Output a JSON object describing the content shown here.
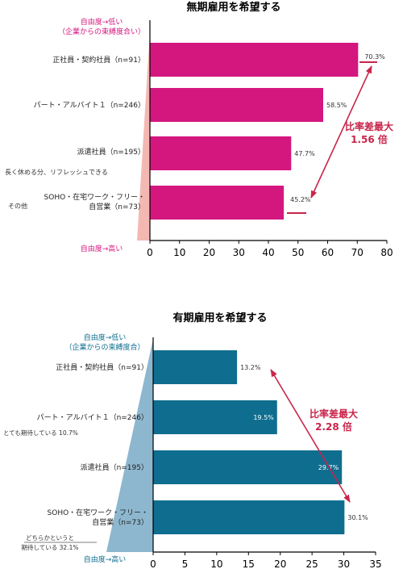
{
  "colors": {
    "magenta": "#d4177f",
    "magenta_wedge": "#f4b8b2",
    "teal": "#0f6e8f",
    "teal_wedge": "#8db7cf",
    "accent_red": "#c9254b",
    "axis": "#000000"
  },
  "chart_data": [
    {
      "type": "bar",
      "orientation": "horizontal",
      "title": "無期雇用を希望する",
      "categories": [
        "正社員・契約社員（n=91）",
        "パート・アルバイト１（n=246）",
        "派遣社員（n=195）",
        "SOHO・在宅ワーク・フリー・自営業（n=73）"
      ],
      "values": [
        70.3,
        58.5,
        47.7,
        45.2
      ],
      "value_labels": [
        "70.3%",
        "58.5%",
        "47.7%",
        "45.2%"
      ],
      "xlim": [
        0,
        80
      ],
      "xticks": [
        0,
        10,
        20,
        30,
        40,
        50,
        60,
        70,
        80
      ],
      "xtick_labels": [
        "0",
        "10",
        "20",
        "30",
        "40",
        "50",
        "60",
        "70",
        "80"
      ],
      "side_top": "自由度→低い",
      "side_top_sub": "（企業からの束縛度合い）",
      "side_bottom": "自由度→高い",
      "note_a": "長く休める分、リフレッシュできる",
      "note_b": "その他",
      "diff_label_1": "比率差最大",
      "diff_label_2": "1.56 倍"
    },
    {
      "type": "bar",
      "orientation": "horizontal",
      "title": "有期雇用を希望する",
      "categories": [
        "正社員・契約社員（n=91）",
        "パート・アルバイト１（n=246）",
        "派遣社員（n=195）",
        "SOHO・在宅ワーク・フリー・自営業（n=73）"
      ],
      "values": [
        13.2,
        19.5,
        29.7,
        30.1
      ],
      "value_labels": [
        "13.2%",
        "19.5%",
        "29.7%",
        "30.1%"
      ],
      "xlim": [
        0,
        35
      ],
      "xticks": [
        0,
        5,
        10,
        15,
        20,
        25,
        30,
        35
      ],
      "xtick_labels": [
        "0",
        "5",
        "10",
        "15",
        "20",
        "25",
        "30",
        "35"
      ],
      "side_top": "自由度→低い",
      "side_top_sub": "（企業からの束縛度合）",
      "side_bottom": "自由度→高い",
      "note_a": "とても期待している 10.7%",
      "note_b": "どちらかというと",
      "note_c": "期待している 32.1%",
      "diff_label_1": "比率差最大",
      "diff_label_2": "2.28 倍"
    }
  ]
}
